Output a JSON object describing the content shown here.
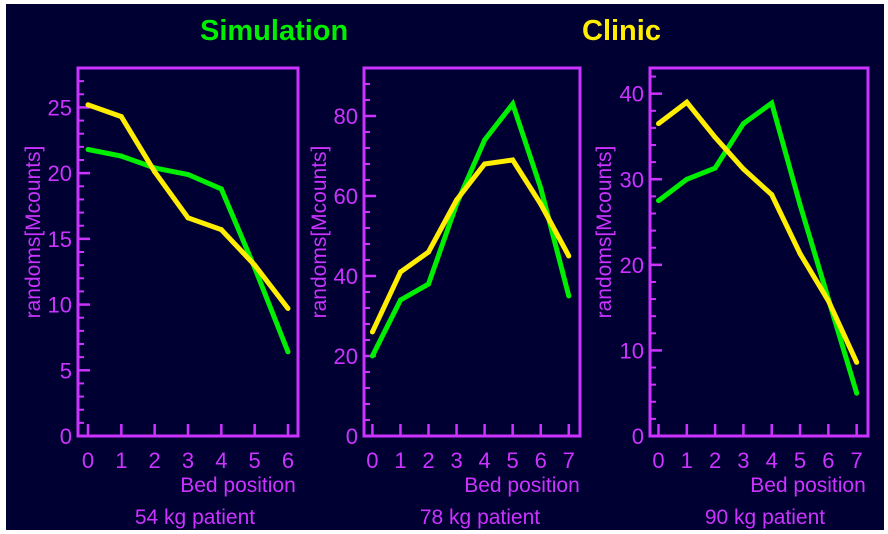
{
  "legend": {
    "simulation": "Simulation",
    "clinic": "Clinic"
  },
  "colors": {
    "background": "#000033",
    "axis": "#cc33ff",
    "simulation": "#00ee00",
    "clinic": "#ffee00"
  },
  "chart_data": [
    {
      "type": "line",
      "caption": "54 kg patient",
      "xlabel": "Bed position",
      "ylabel": "randoms[Mcounts]",
      "xlim": [
        -0.3,
        6.3
      ],
      "ylim": [
        0,
        28
      ],
      "xticks": [
        0,
        1,
        2,
        3,
        4,
        5,
        6
      ],
      "yticks": [
        0,
        5,
        10,
        15,
        20,
        25
      ],
      "series": [
        {
          "name": "Simulation",
          "x": [
            0,
            1,
            2,
            3,
            4,
            5,
            6
          ],
          "values": [
            21.8,
            21.3,
            20.4,
            19.9,
            18.8,
            12.8,
            6.4
          ]
        },
        {
          "name": "Clinic",
          "x": [
            0,
            1,
            2,
            3,
            4,
            5,
            6
          ],
          "values": [
            25.2,
            24.3,
            20.1,
            16.6,
            15.7,
            13.0,
            9.7
          ]
        }
      ]
    },
    {
      "type": "line",
      "caption": "78 kg patient",
      "xlabel": "Bed position",
      "ylabel": "randoms[Mcounts]",
      "xlim": [
        -0.3,
        7.4
      ],
      "ylim": [
        0,
        92
      ],
      "xticks": [
        0,
        1,
        2,
        3,
        4,
        5,
        6,
        7
      ],
      "yticks": [
        0,
        20,
        40,
        60,
        80
      ],
      "series": [
        {
          "name": "Simulation",
          "x": [
            0,
            1,
            2,
            3,
            4,
            5,
            6,
            7
          ],
          "values": [
            20,
            34,
            38,
            58,
            74,
            83,
            62,
            35
          ]
        },
        {
          "name": "Clinic",
          "x": [
            0,
            1,
            2,
            3,
            4,
            5,
            6,
            7
          ],
          "values": [
            26,
            41,
            46,
            59,
            68,
            69,
            58,
            45
          ]
        }
      ]
    },
    {
      "type": "line",
      "caption": "90 kg patient",
      "xlabel": "Bed position",
      "ylabel": "randoms[Mcounts]",
      "xlim": [
        -0.3,
        7.4
      ],
      "ylim": [
        0,
        43
      ],
      "xticks": [
        0,
        1,
        2,
        3,
        4,
        5,
        6,
        7
      ],
      "yticks": [
        0,
        10,
        20,
        30,
        40
      ],
      "series": [
        {
          "name": "Simulation",
          "x": [
            0,
            1,
            2,
            3,
            4,
            5,
            6,
            7
          ],
          "values": [
            27.5,
            30.0,
            31.3,
            36.5,
            38.9,
            27.0,
            16.0,
            5.0
          ]
        },
        {
          "name": "Clinic",
          "x": [
            0,
            1,
            2,
            3,
            4,
            5,
            6,
            7
          ],
          "values": [
            36.5,
            39.0,
            34.9,
            31.2,
            28.2,
            21.3,
            15.8,
            8.6
          ]
        }
      ]
    }
  ]
}
